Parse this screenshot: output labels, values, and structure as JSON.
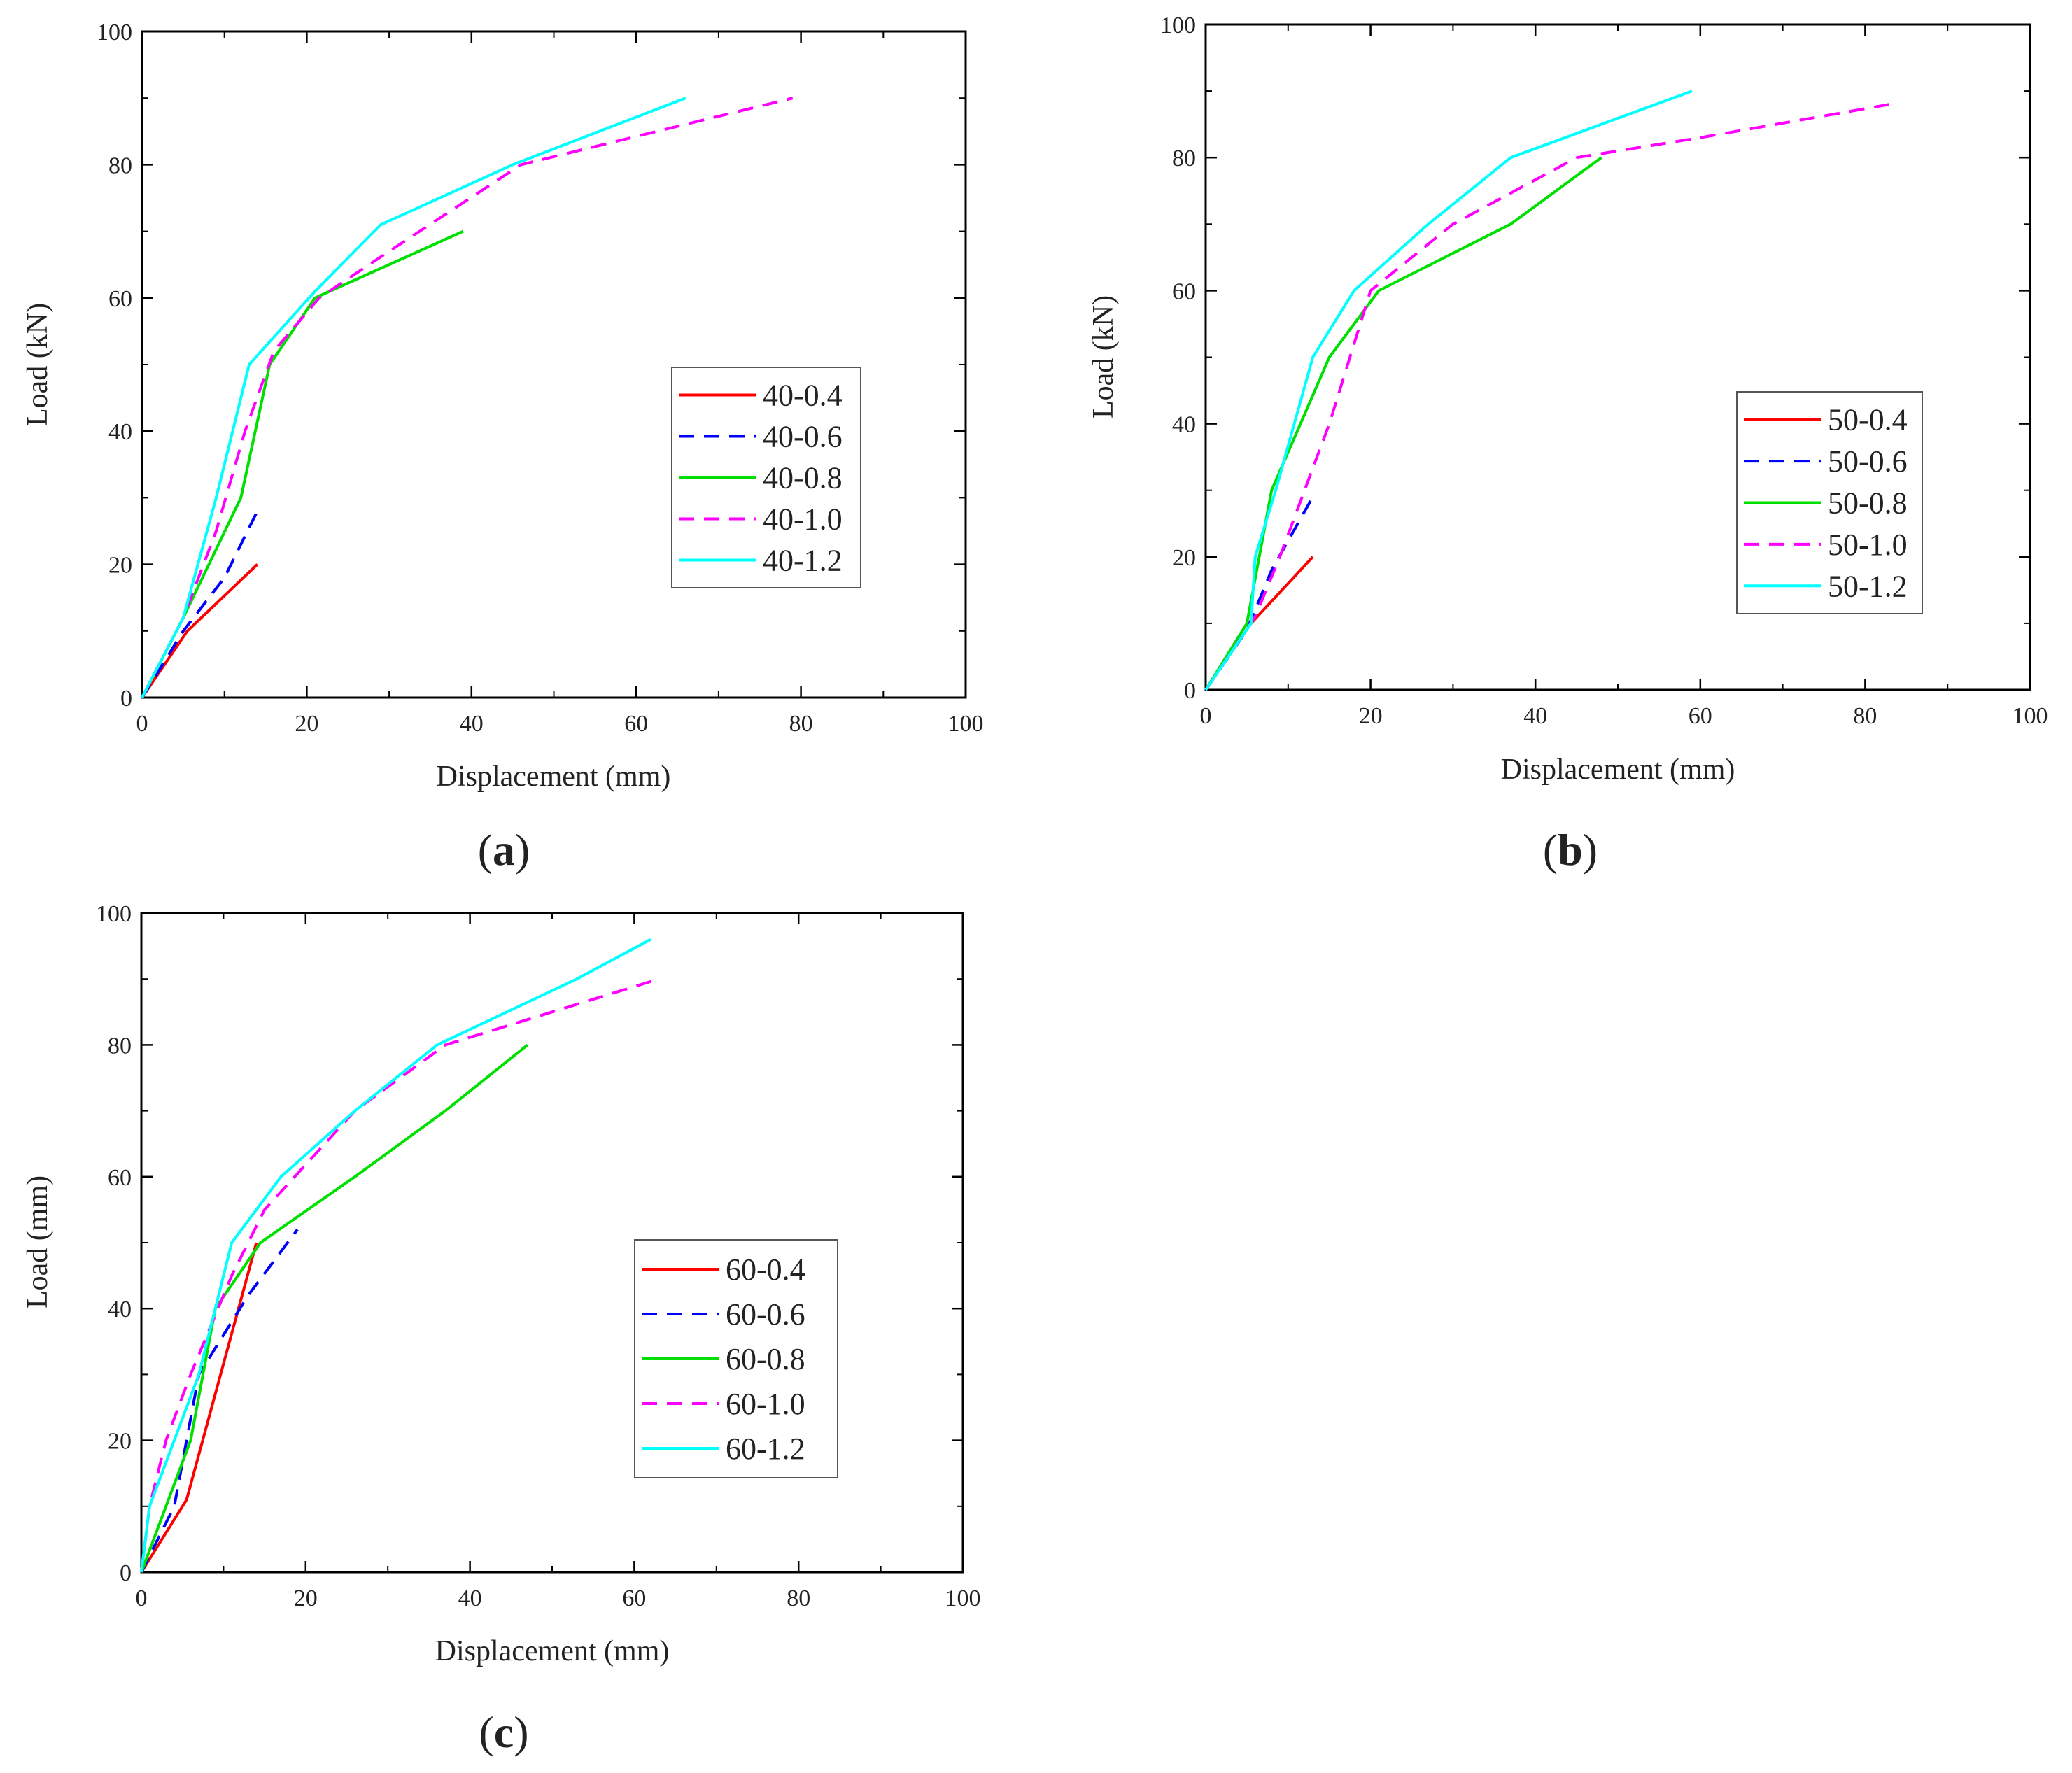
{
  "chart_data": [
    {
      "type": "line",
      "panel_label": "a",
      "title": "",
      "xlabel": "Displacement (mm)",
      "ylabel": "Load (kN)",
      "xlim": [
        0,
        100
      ],
      "ylim": [
        0,
        100
      ],
      "xticks": [
        0,
        20,
        40,
        60,
        80,
        100
      ],
      "yticks": [
        0,
        20,
        40,
        60,
        80,
        100
      ],
      "grid": false,
      "legend_position": "right-middle",
      "series": [
        {
          "name": "40-0.4",
          "color": "#ff0000",
          "dash": "solid",
          "x": [
            0,
            5.5,
            14
          ],
          "y": [
            0,
            10,
            20
          ]
        },
        {
          "name": "40-0.6",
          "color": "#0000ff",
          "dash": "dashed",
          "x": [
            0,
            5,
            10,
            14
          ],
          "y": [
            0,
            10,
            18,
            28
          ]
        },
        {
          "name": "40-0.8",
          "color": "#00e000",
          "dash": "solid",
          "x": [
            0,
            5,
            12,
            15.5,
            21,
            39
          ],
          "y": [
            0,
            12,
            30,
            50,
            60,
            70
          ]
        },
        {
          "name": "40-1.0",
          "color": "#ff00ff",
          "dash": "dashed",
          "x": [
            0,
            5,
            9,
            12.5,
            16,
            21.5,
            30,
            46,
            79
          ],
          "y": [
            0,
            12,
            25,
            40,
            52,
            60,
            67,
            80,
            90
          ]
        },
        {
          "name": "40-1.2",
          "color": "#00ffff",
          "dash": "solid",
          "x": [
            0,
            5,
            9,
            13,
            21,
            29,
            45,
            66
          ],
          "y": [
            0,
            12,
            30,
            50,
            61,
            71,
            80,
            90
          ]
        }
      ]
    },
    {
      "type": "line",
      "panel_label": "b",
      "title": "",
      "xlabel": "Displacement (mm)",
      "ylabel": "Load (kN)",
      "xlim": [
        0,
        100
      ],
      "ylim": [
        0,
        100
      ],
      "xticks": [
        0,
        20,
        40,
        60,
        80,
        100
      ],
      "yticks": [
        0,
        20,
        40,
        60,
        80,
        100
      ],
      "grid": false,
      "legend_position": "right-middle",
      "series": [
        {
          "name": "50-0.4",
          "color": "#ff0000",
          "dash": "solid",
          "x": [
            0,
            5.5,
            13
          ],
          "y": [
            0,
            10,
            20
          ]
        },
        {
          "name": "50-0.6",
          "color": "#0000ff",
          "dash": "dashed",
          "x": [
            0,
            5,
            8,
            13
          ],
          "y": [
            0,
            9,
            18,
            29
          ]
        },
        {
          "name": "50-0.8",
          "color": "#00e000",
          "dash": "solid",
          "x": [
            0,
            5,
            8,
            15,
            21,
            37,
            48
          ],
          "y": [
            0,
            10,
            30,
            50,
            60,
            70,
            80
          ]
        },
        {
          "name": "50-1.0",
          "color": "#ff00ff",
          "dash": "dashed",
          "x": [
            0,
            6,
            9,
            15,
            20,
            30,
            45,
            60,
            83
          ],
          "y": [
            0,
            11,
            20,
            40,
            60,
            70,
            80,
            83,
            88
          ]
        },
        {
          "name": "50-1.2",
          "color": "#00ffff",
          "dash": "solid",
          "x": [
            0,
            5.5,
            6,
            8.5,
            13,
            18,
            27,
            37,
            59
          ],
          "y": [
            0,
            10,
            20,
            30,
            50,
            60,
            70,
            80,
            90
          ]
        }
      ]
    },
    {
      "type": "line",
      "panel_label": "c",
      "title": "",
      "xlabel": "Displacement (mm)",
      "ylabel": "Load (mm)",
      "xlim": [
        0,
        100
      ],
      "ylim": [
        0,
        100
      ],
      "xticks": [
        0,
        20,
        40,
        60,
        80,
        100
      ],
      "yticks": [
        0,
        20,
        40,
        60,
        80,
        100
      ],
      "grid": false,
      "legend_position": "right-middle",
      "series": [
        {
          "name": "60-0.4",
          "color": "#ff0000",
          "dash": "solid",
          "x": [
            0,
            5.5,
            14
          ],
          "y": [
            0,
            11,
            50
          ]
        },
        {
          "name": "60-0.6",
          "color": "#0000ff",
          "dash": "dashed",
          "x": [
            0,
            4,
            7,
            13,
            19
          ],
          "y": [
            0,
            10,
            30,
            42,
            52
          ]
        },
        {
          "name": "60-0.8",
          "color": "#00e000",
          "dash": "solid",
          "x": [
            0,
            3,
            6,
            9,
            14.5,
            26,
            37,
            47
          ],
          "y": [
            0,
            10,
            20,
            40,
            50,
            60,
            70,
            80
          ]
        },
        {
          "name": "60-1.0",
          "color": "#ff00ff",
          "dash": "dashed",
          "x": [
            0,
            1,
            3,
            6,
            11,
            15,
            26,
            37,
            63
          ],
          "y": [
            0,
            10,
            20,
            30,
            45,
            55,
            70,
            80,
            90
          ]
        },
        {
          "name": "60-1.2",
          "color": "#00ffff",
          "dash": "solid",
          "x": [
            0,
            1,
            4,
            7,
            11,
            17,
            26,
            36,
            53,
            62
          ],
          "y": [
            0,
            10,
            20,
            30,
            50,
            60,
            70,
            80,
            90,
            96
          ]
        }
      ]
    }
  ]
}
